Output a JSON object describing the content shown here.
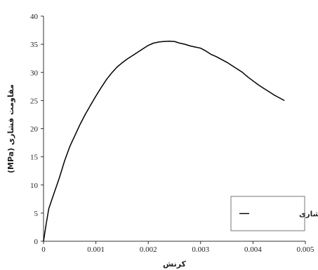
{
  "chart_data": {
    "type": "line",
    "title": "",
    "xlabel": "کرنش",
    "ylabel": "مقاومت فشاری (MPa)",
    "xlim": [
      0,
      0.005
    ],
    "ylim": [
      0,
      40
    ],
    "x_ticks": [
      "0",
      "0.001",
      "0.002",
      "0.003",
      "0.004",
      "0.005"
    ],
    "y_ticks": [
      "0",
      "5",
      "10",
      "15",
      "20",
      "25",
      "30",
      "35",
      "40"
    ],
    "grid": false,
    "legend_position": "bottom-right",
    "series": [
      {
        "name": "مقاومت فشاری",
        "color": "#000000",
        "points": [
          [
            0,
            0
          ],
          [
            5e-05,
            3
          ],
          [
            0.0001,
            5.8
          ],
          [
            0.0002,
            8.5
          ],
          [
            0.0003,
            11.2
          ],
          [
            0.0004,
            14.2
          ],
          [
            0.0005,
            16.8
          ],
          [
            0.0006,
            18.8
          ],
          [
            0.0007,
            20.8
          ],
          [
            0.0008,
            22.6
          ],
          [
            0.0009,
            24.2
          ],
          [
            0.001,
            25.8
          ],
          [
            0.0011,
            27.3
          ],
          [
            0.0012,
            28.7
          ],
          [
            0.0013,
            29.9
          ],
          [
            0.0014,
            30.9
          ],
          [
            0.0015,
            31.7
          ],
          [
            0.0016,
            32.4
          ],
          [
            0.0017,
            33.0
          ],
          [
            0.0018,
            33.6
          ],
          [
            0.0019,
            34.2
          ],
          [
            0.002,
            34.8
          ],
          [
            0.0021,
            35.2
          ],
          [
            0.0022,
            35.4
          ],
          [
            0.0023,
            35.5
          ],
          [
            0.0024,
            35.55
          ],
          [
            0.0025,
            35.5
          ],
          [
            0.0026,
            35.2
          ],
          [
            0.0027,
            35.0
          ],
          [
            0.0028,
            34.7
          ],
          [
            0.0029,
            34.5
          ],
          [
            0.003,
            34.3
          ],
          [
            0.0031,
            33.8
          ],
          [
            0.0032,
            33.2
          ],
          [
            0.0033,
            32.8
          ],
          [
            0.0034,
            32.3
          ],
          [
            0.0035,
            31.8
          ],
          [
            0.0036,
            31.2
          ],
          [
            0.0037,
            30.6
          ],
          [
            0.0038,
            30.0
          ],
          [
            0.0039,
            29.2
          ],
          [
            0.004,
            28.5
          ],
          [
            0.0041,
            27.8
          ],
          [
            0.0042,
            27.2
          ],
          [
            0.0043,
            26.6
          ],
          [
            0.0044,
            26.0
          ],
          [
            0.0045,
            25.5
          ],
          [
            0.0046,
            25.0
          ]
        ]
      }
    ]
  }
}
